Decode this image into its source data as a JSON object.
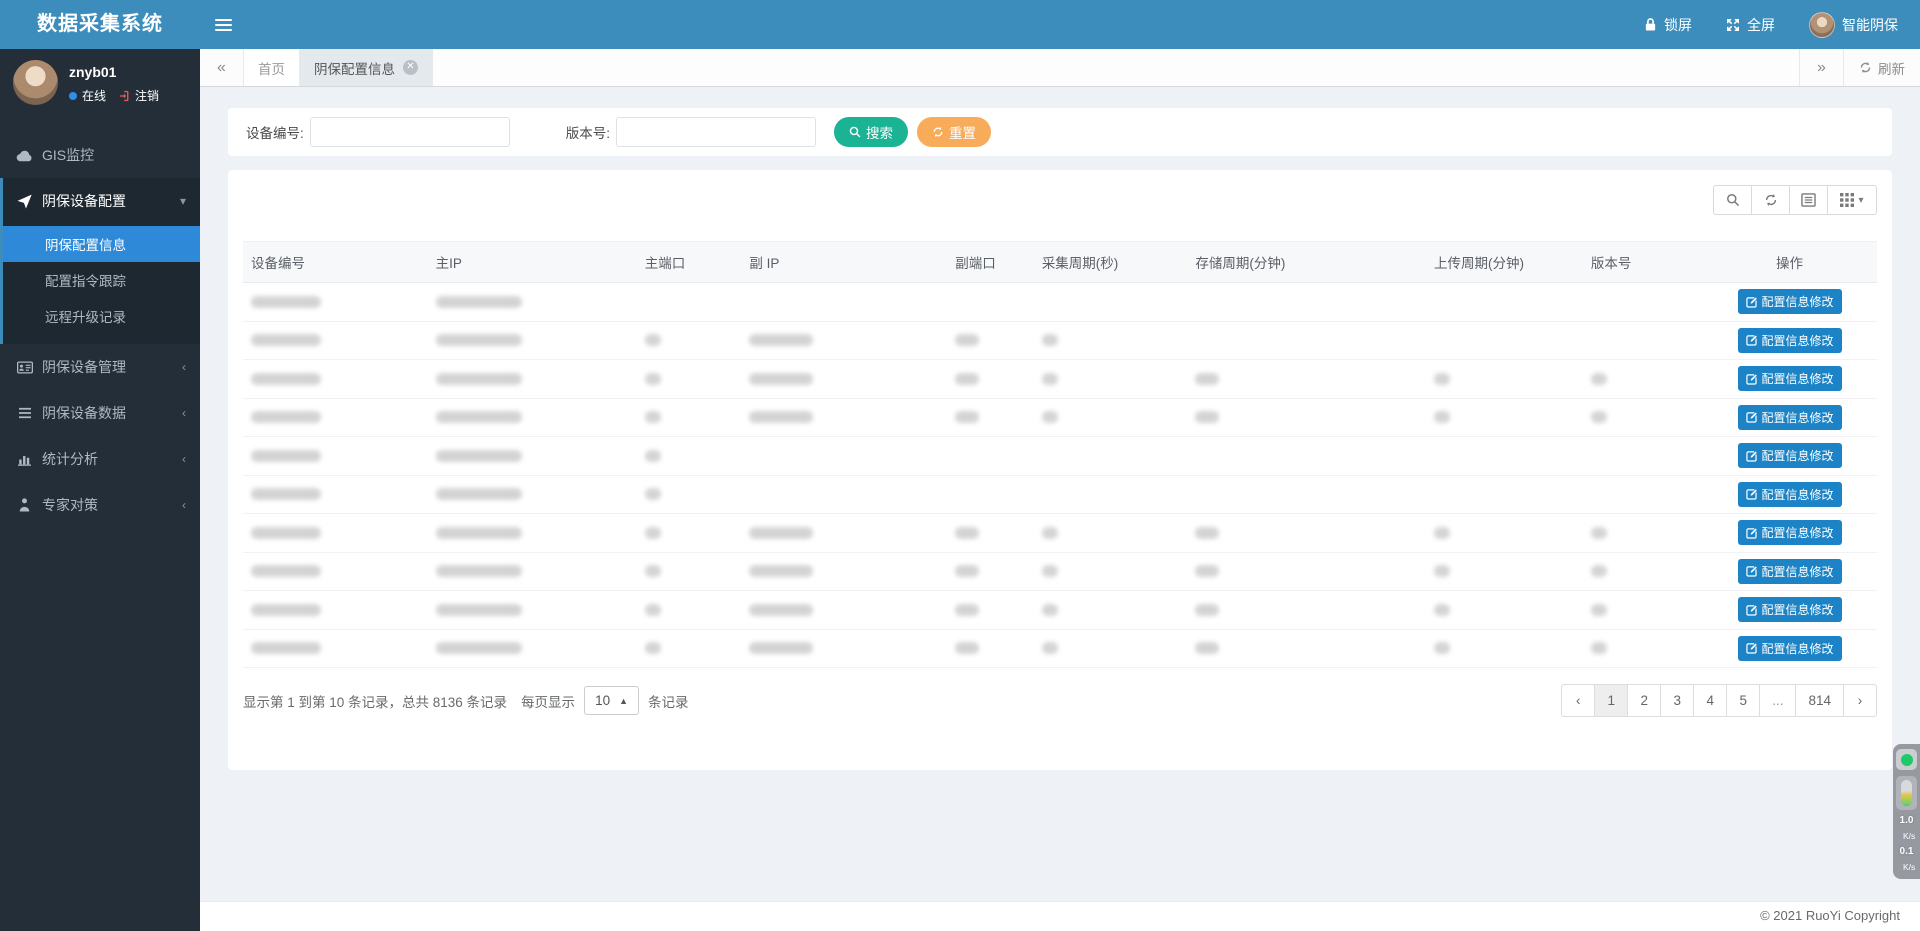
{
  "app": {
    "title": "数据采集系统"
  },
  "topbar": {
    "lock_label": "锁屏",
    "fullscreen_label": "全屏",
    "username": "智能阴保"
  },
  "user_panel": {
    "name": "znyb01",
    "status": "在线",
    "logout": "注销"
  },
  "sidebar": {
    "items": [
      {
        "label": "GIS监控",
        "icon": "cloud",
        "expandable": false,
        "expanded": false
      },
      {
        "label": "阴保设备配置",
        "icon": "send",
        "expandable": true,
        "expanded": true,
        "children": [
          {
            "label": "阴保配置信息",
            "active": true
          },
          {
            "label": "配置指令跟踪",
            "active": false
          },
          {
            "label": "远程升级记录",
            "active": false
          }
        ]
      },
      {
        "label": "阴保设备管理",
        "icon": "id-card",
        "expandable": true,
        "expanded": false
      },
      {
        "label": "阴保设备数据",
        "icon": "list",
        "expandable": true,
        "expanded": false
      },
      {
        "label": "统计分析",
        "icon": "bar-chart",
        "expandable": true,
        "expanded": false
      },
      {
        "label": "专家对策",
        "icon": "user",
        "expandable": true,
        "expanded": false
      }
    ]
  },
  "tabs": {
    "collapse_left": "«",
    "collapse_right": "»",
    "refresh_label": "刷新",
    "items": [
      {
        "label": "首页",
        "active": false,
        "closable": false
      },
      {
        "label": "阴保配置信息",
        "active": true,
        "closable": true
      }
    ]
  },
  "search": {
    "device_label": "设备编号:",
    "device_value": "",
    "version_label": "版本号:",
    "version_value": "",
    "search_button": "搜索",
    "reset_button": "重置"
  },
  "table": {
    "columns": [
      "设备编号",
      "主IP",
      "主端口",
      "副 IP",
      "副端口",
      "采集周期(秒)",
      "存储周期(分钟)",
      "上传周期(分钟)",
      "版本号",
      "操作"
    ],
    "action_label": "配置信息修改",
    "rows": [
      {
        "redacted_cells": [
          1,
          1,
          0,
          0,
          0,
          0,
          0,
          0,
          0
        ]
      },
      {
        "redacted_cells": [
          1,
          1,
          1,
          1,
          1,
          1,
          0,
          0,
          0
        ]
      },
      {
        "redacted_cells": [
          1,
          1,
          1,
          1,
          1,
          1,
          1,
          1,
          1
        ]
      },
      {
        "redacted_cells": [
          1,
          1,
          1,
          1,
          1,
          1,
          1,
          1,
          1
        ]
      },
      {
        "redacted_cells": [
          1,
          1,
          1,
          0,
          0,
          0,
          0,
          0,
          0
        ]
      },
      {
        "redacted_cells": [
          1,
          1,
          1,
          0,
          0,
          0,
          0,
          0,
          0
        ]
      },
      {
        "redacted_cells": [
          1,
          1,
          1,
          1,
          1,
          1,
          1,
          1,
          1
        ]
      },
      {
        "redacted_cells": [
          1,
          1,
          1,
          1,
          1,
          1,
          1,
          1,
          1
        ]
      },
      {
        "redacted_cells": [
          1,
          1,
          1,
          1,
          1,
          1,
          1,
          1,
          1
        ]
      },
      {
        "redacted_cells": [
          1,
          1,
          1,
          1,
          1,
          1,
          1,
          1,
          1
        ]
      }
    ]
  },
  "pagination": {
    "summary": "显示第 1 到第 10 条记录，总共 8136 条记录",
    "page_size_prefix": "每页显示",
    "page_size": "10",
    "page_size_suffix": "条记录",
    "prev": "‹",
    "next": "›",
    "pages": [
      "1",
      "2",
      "3",
      "4",
      "5",
      "...",
      "814"
    ],
    "active_page": "1"
  },
  "footer": {
    "copyright": "© 2021 RuoYi Copyright"
  },
  "speed_widget": {
    "up_value": "1.0",
    "up_unit": "K/s",
    "down_value": "0.1",
    "down_unit": "K/s"
  },
  "colors": {
    "brand": "#3c8dbc",
    "active_menu": "#2e8ad8",
    "search_green": "#1ab394",
    "reset_orange": "#f8ac59",
    "action_blue": "#1c84c6",
    "sidebar_bg": "#232e38"
  }
}
